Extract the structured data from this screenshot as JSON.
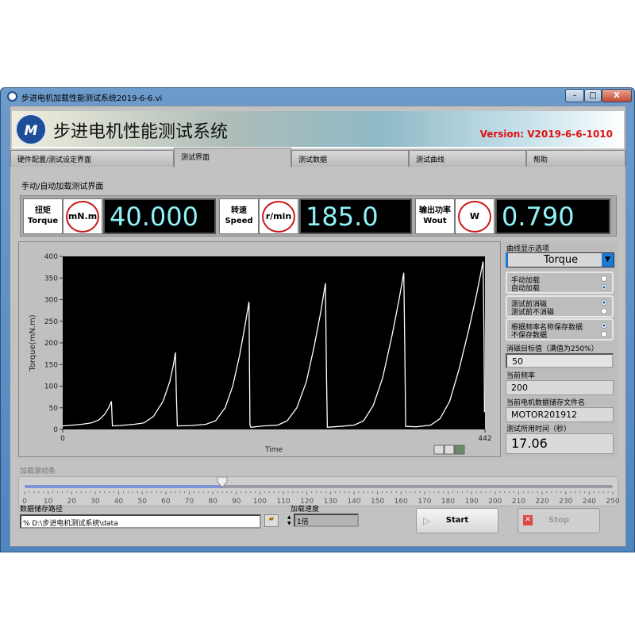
{
  "window": {
    "title": "步进电机加载性能测试系统2019-6-6.vi",
    "minimize": "–",
    "maximize": "□",
    "close": "X"
  },
  "header": {
    "logo": "M",
    "title": "步进电机性能测试系统",
    "version": "Version: V2019-6-6-1010",
    "version_color": "#e01010"
  },
  "tabs": [
    {
      "label": "硬件配置/测试设定界面"
    },
    {
      "label": "测试界面",
      "active": true
    },
    {
      "label": "测试数据"
    },
    {
      "label": "测试曲线"
    },
    {
      "label": "帮助"
    }
  ],
  "panel_label": "手动/自动加载测试界面",
  "indicators": [
    {
      "cn": "扭矩",
      "en": "Torque",
      "unit": "mN.m",
      "value": "40.000"
    },
    {
      "cn": "转速",
      "en": "Speed",
      "unit": "r/min",
      "value": "185.0"
    },
    {
      "cn": "输出功率",
      "en": "Wout",
      "unit": "W",
      "value": "0.790"
    }
  ],
  "chart_data": {
    "type": "line",
    "title": "",
    "xlabel": "Time",
    "ylabel": "Torque(mN.m)",
    "xlim": [
      0,
      442
    ],
    "ylim": [
      0,
      400
    ],
    "yticks": [
      0,
      50,
      100,
      150,
      200,
      250,
      300,
      350,
      400
    ],
    "xticks": [
      0,
      442
    ],
    "grid": false,
    "background": "#000000",
    "line_color": "#ffffff",
    "x": [
      0,
      10,
      20,
      30,
      38,
      44,
      48,
      51,
      52,
      60,
      75,
      85,
      95,
      105,
      112,
      116,
      118,
      119,
      120,
      135,
      150,
      160,
      170,
      178,
      185,
      190,
      195,
      196,
      197,
      210,
      225,
      235,
      245,
      255,
      263,
      270,
      275,
      276,
      277,
      290,
      305,
      315,
      325,
      335,
      345,
      352,
      357,
      358,
      359,
      370,
      385,
      395,
      405,
      415,
      425,
      433,
      440,
      441,
      441.5
    ],
    "y": [
      8,
      10,
      12,
      15,
      22,
      35,
      50,
      65,
      8,
      9,
      12,
      15,
      30,
      65,
      110,
      150,
      178,
      80,
      8,
      9,
      12,
      20,
      50,
      100,
      170,
      230,
      295,
      10,
      5,
      8,
      10,
      20,
      50,
      110,
      190,
      270,
      338,
      140,
      5,
      7,
      10,
      20,
      55,
      120,
      220,
      300,
      362,
      200,
      7,
      6,
      10,
      25,
      65,
      140,
      230,
      310,
      388,
      210,
      40
    ]
  },
  "graph_tools": [
    "cursor-icon",
    "zoom-icon",
    "pan-icon"
  ],
  "right_panel": {
    "curve_label": "曲线显示选项",
    "curve_value": "Torque",
    "groups": [
      {
        "options": [
          "手动加载",
          "自动加载"
        ],
        "selected": 1
      },
      {
        "options": [
          "测试前消磁",
          "测试前不消磁"
        ],
        "selected": 0
      },
      {
        "options": [
          "根据频率名称保存数据",
          "不保存数据"
        ],
        "selected": 0
      }
    ],
    "demag_label": "消磁目标值（满值为250%）",
    "demag_value": "50",
    "freq_label": "当前频率",
    "freq_value": "200",
    "file_label": "当前电机数据储存文件名",
    "file_value": "MOTOR201912",
    "time_label": "测试所用时间（秒）",
    "time_value": "17.06"
  },
  "slider": {
    "label": "加载滚动条",
    "min": 0,
    "max": 250,
    "value": 84,
    "ticks": [
      0,
      10,
      20,
      30,
      40,
      50,
      60,
      70,
      80,
      90,
      100,
      110,
      120,
      130,
      140,
      150,
      160,
      170,
      180,
      190,
      200,
      210,
      220,
      230,
      240,
      250
    ],
    "fill_color": "#7f93d6"
  },
  "path": {
    "label": "数据储存路径",
    "value": "D:\\步进电机测试系统\\data"
  },
  "speed": {
    "label": "加载速度",
    "value": "1倍"
  },
  "buttons": {
    "start": "Start",
    "stop": "Stop"
  }
}
